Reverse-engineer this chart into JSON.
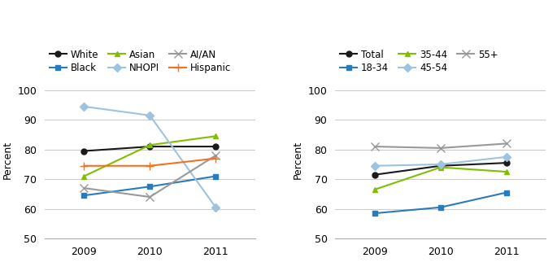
{
  "years": [
    2009,
    2010,
    2011
  ],
  "left_chart": {
    "series": [
      {
        "label": "White",
        "color": "#1a1a1a",
        "marker": "o",
        "values": [
          79.5,
          81.0,
          81.0
        ]
      },
      {
        "label": "Black",
        "color": "#2b7bba",
        "marker": "s",
        "values": [
          64.5,
          67.5,
          71.0
        ]
      },
      {
        "label": "Asian",
        "color": "#7fbf00",
        "marker": "^",
        "values": [
          71.0,
          81.5,
          84.5
        ]
      },
      {
        "label": "NHOPI",
        "color": "#9dc3e0",
        "marker": "D",
        "values": [
          94.5,
          91.5,
          60.5
        ]
      },
      {
        "label": "AI/AN",
        "color": "#999999",
        "marker": "x",
        "values": [
          67.0,
          64.0,
          78.0
        ]
      },
      {
        "label": "Hispanic",
        "color": "#f4711f",
        "marker": "+",
        "values": [
          74.5,
          74.5,
          77.0
        ]
      }
    ]
  },
  "right_chart": {
    "series": [
      {
        "label": "Total",
        "color": "#1a1a1a",
        "marker": "o",
        "values": [
          71.5,
          74.5,
          75.5
        ]
      },
      {
        "label": "18-34",
        "color": "#2b7bba",
        "marker": "s",
        "values": [
          58.5,
          60.5,
          65.5
        ]
      },
      {
        "label": "35-44",
        "color": "#7fbf00",
        "marker": "^",
        "values": [
          66.5,
          74.0,
          72.5
        ]
      },
      {
        "label": "45-54",
        "color": "#9dc3e0",
        "marker": "D",
        "values": [
          74.5,
          75.0,
          77.5
        ]
      },
      {
        "label": "55+",
        "color": "#999999",
        "marker": "x",
        "values": [
          81.0,
          80.5,
          82.0
        ]
      }
    ]
  },
  "ylim": [
    50,
    103
  ],
  "yticks": [
    50,
    60,
    70,
    80,
    90,
    100
  ],
  "ylabel": "Percent",
  "background_color": "#ffffff",
  "legend_fontsize": 8.5,
  "axis_fontsize": 9,
  "tick_fontsize": 9
}
